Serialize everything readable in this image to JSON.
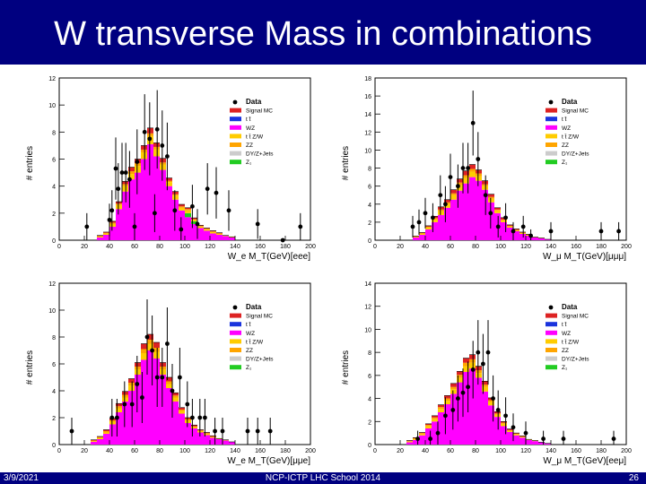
{
  "slide": {
    "title": "W transverse Mass in combinations",
    "date": "3/9/2021",
    "footer": "NCP-ICTP LHC School 2014",
    "page": "26"
  },
  "legend_colors": {
    "Data": "#000000",
    "Signal MC": "#dd2222",
    "tt": "#1a33dd",
    "WZ": "#ff00ff",
    "ttZ/W": "#ffcc00",
    "ZZ": "#ffa500",
    "DY/Z+Jets": "#cccccc",
    "Z1": "#22cc22"
  },
  "chart_data": [
    {
      "type": "bar",
      "stacked": true,
      "panel": "top-left",
      "xlabel": "W_e M_T(GeV)[eee]",
      "ylabel": "# entries",
      "xlim": [
        0,
        200
      ],
      "ylim": [
        0,
        12
      ],
      "xticks": [
        0,
        20,
        40,
        60,
        80,
        100,
        120,
        140,
        160,
        180,
        200
      ],
      "yticks": [
        0,
        2,
        4,
        6,
        8,
        10,
        12
      ],
      "legend": {
        "position": "top-right",
        "entries": [
          "Data",
          "Signal MC",
          "tt",
          "WZ",
          "ttZ/W",
          "ZZ",
          "DY/Z+Jets",
          "Z1"
        ]
      },
      "legend_labels": [
        "Data",
        "Signal MC",
        "t t̄",
        "WZ",
        "t t̄ Z/W",
        "ZZ",
        "DY/Z+Jets",
        "Z₁"
      ],
      "bin_edges": [
        30,
        35,
        40,
        45,
        50,
        55,
        60,
        65,
        70,
        75,
        80,
        85,
        90,
        95,
        100,
        105,
        110,
        115,
        120,
        125,
        130,
        135,
        140
      ],
      "series": [
        {
          "name": "WZ",
          "values": [
            0.2,
            0.4,
            1.0,
            2.3,
            3.6,
            4.5,
            5.0,
            6.0,
            7.1,
            6.2,
            5.2,
            4.0,
            3.0,
            2.2,
            1.7,
            1.2,
            0.9,
            0.7,
            0.5,
            0.4,
            0.3,
            0.2
          ]
        },
        {
          "name": "Z1",
          "values": [
            0,
            0,
            0,
            0,
            0,
            0,
            0,
            0,
            0,
            0,
            0,
            0,
            0,
            0,
            0.3,
            0.2,
            0,
            0,
            0,
            0,
            0,
            0
          ]
        },
        {
          "name": "ttZ/W",
          "values": [
            0.05,
            0.1,
            0.2,
            0.3,
            0.4,
            0.4,
            0.5,
            0.5,
            0.6,
            0.5,
            0.4,
            0.3,
            0.3,
            0.2,
            0.2,
            0.1,
            0.1,
            0.1,
            0.1,
            0.1,
            0.05,
            0.05
          ]
        },
        {
          "name": "ZZ",
          "values": [
            0.05,
            0.05,
            0.1,
            0.1,
            0.15,
            0.2,
            0.2,
            0.2,
            0.2,
            0.2,
            0.15,
            0.1,
            0.1,
            0.1,
            0.1,
            0.05,
            0.05,
            0.05,
            0.05,
            0,
            0,
            0
          ]
        },
        {
          "name": "Signal MC",
          "values": [
            0.05,
            0.05,
            0.1,
            0.15,
            0.2,
            0.3,
            0.3,
            0.3,
            0.4,
            0.3,
            0.3,
            0.2,
            0.2,
            0.15,
            0.1,
            0.1,
            0.05,
            0.05,
            0.05,
            0.05,
            0,
            0
          ]
        }
      ],
      "data_points": {
        "x": [
          22,
          40,
          42,
          45,
          47,
          50,
          53,
          56,
          60,
          62,
          68,
          72,
          76,
          78,
          82,
          86,
          92,
          97,
          106,
          110,
          118,
          125,
          135,
          158,
          178,
          192
        ],
        "y": [
          1.0,
          1.5,
          2.2,
          5.3,
          3.8,
          5.0,
          5.0,
          4.5,
          1.0,
          5.8,
          8.0,
          7.5,
          2.0,
          8.2,
          7.0,
          6.2,
          2.2,
          0.8,
          2.5,
          1.2,
          3.8,
          3.5,
          2.2,
          1.2,
          0.0,
          1.0
        ],
        "err": [
          1.0,
          1.2,
          1.5,
          2.3,
          1.9,
          2.2,
          2.2,
          2.1,
          1.0,
          2.4,
          2.8,
          2.7,
          1.4,
          2.9,
          2.6,
          2.5,
          1.5,
          0.9,
          1.6,
          1.1,
          1.9,
          1.9,
          1.5,
          1.1,
          0.0,
          1.0
        ]
      }
    },
    {
      "type": "bar",
      "stacked": true,
      "panel": "top-right",
      "xlabel": "W_μ M_T(GeV)[μμμ]",
      "ylabel": "# entries",
      "xlim": [
        0,
        200
      ],
      "ylim": [
        0,
        18
      ],
      "xticks": [
        0,
        20,
        40,
        60,
        80,
        100,
        120,
        140,
        160,
        180,
        200
      ],
      "yticks": [
        0,
        2,
        4,
        6,
        8,
        10,
        12,
        14,
        16,
        18
      ],
      "legend": {
        "position": "top-right",
        "entries": [
          "Data",
          "Signal MC",
          "tt",
          "WZ",
          "ttZ/W",
          "ZZ",
          "DY/Z+Jets",
          "Z1"
        ]
      },
      "legend_labels": [
        "Data",
        "Signal MC",
        "t t̄",
        "WZ",
        "t t̄ Z/W",
        "ZZ",
        "DY/Z+Jets",
        "Z₁"
      ],
      "bin_edges": [
        30,
        35,
        40,
        45,
        50,
        55,
        60,
        65,
        70,
        75,
        80,
        85,
        90,
        95,
        100,
        105,
        110,
        115,
        120,
        125,
        130,
        135,
        140
      ],
      "series": [
        {
          "name": "WZ",
          "values": [
            0.3,
            0.6,
            1.2,
            2.0,
            2.8,
            3.6,
            4.5,
            5.5,
            6.3,
            7.0,
            6.6,
            5.6,
            4.2,
            3.0,
            2.0,
            1.4,
            1.0,
            0.7,
            0.5,
            0.3,
            0.2,
            0.1
          ]
        },
        {
          "name": "Z1",
          "values": [
            0,
            0,
            0,
            0,
            0,
            0,
            0,
            0,
            0,
            0,
            0,
            0,
            0,
            0,
            0,
            0,
            0,
            0,
            0,
            0,
            0,
            0
          ]
        },
        {
          "name": "ttZ/W",
          "values": [
            0.05,
            0.1,
            0.2,
            0.3,
            0.4,
            0.4,
            0.5,
            0.6,
            0.6,
            0.6,
            0.5,
            0.4,
            0.4,
            0.3,
            0.2,
            0.1,
            0.1,
            0.1,
            0.05,
            0.05,
            0.05,
            0
          ]
        },
        {
          "name": "ZZ",
          "values": [
            0.05,
            0.1,
            0.1,
            0.15,
            0.2,
            0.2,
            0.2,
            0.3,
            0.3,
            0.3,
            0.3,
            0.2,
            0.2,
            0.1,
            0.1,
            0.1,
            0.05,
            0.05,
            0.05,
            0,
            0,
            0
          ]
        },
        {
          "name": "Signal MC",
          "values": [
            0.05,
            0.05,
            0.1,
            0.2,
            0.3,
            0.3,
            0.4,
            0.4,
            0.5,
            0.5,
            0.4,
            0.4,
            0.3,
            0.2,
            0.2,
            0.1,
            0.1,
            0.05,
            0.05,
            0,
            0,
            0
          ]
        }
      ],
      "data_points": {
        "x": [
          30,
          35,
          40,
          46,
          52,
          56,
          60,
          66,
          70,
          74,
          78,
          82,
          88,
          92,
          98,
          104,
          110,
          118,
          124,
          140,
          180,
          194
        ],
        "y": [
          1.5,
          2.0,
          3.0,
          2.5,
          5.0,
          4.0,
          7.0,
          6.0,
          8.0,
          8.0,
          13.0,
          9.0,
          5.0,
          3.0,
          1.5,
          2.5,
          1.0,
          1.5,
          0.5,
          1.0,
          1.0,
          1.0
        ],
        "err": [
          1.2,
          1.4,
          1.7,
          1.6,
          2.2,
          2.0,
          2.6,
          2.4,
          2.8,
          2.8,
          3.6,
          3.0,
          2.2,
          1.7,
          1.2,
          1.6,
          1.0,
          1.2,
          0.7,
          1.0,
          1.0,
          1.0
        ]
      }
    },
    {
      "type": "bar",
      "stacked": true,
      "panel": "bottom-left",
      "xlabel": "W_e M_T(GeV)[μμe]",
      "ylabel": "# entries",
      "xlim": [
        0,
        200
      ],
      "ylim": [
        0,
        12
      ],
      "xticks": [
        0,
        20,
        40,
        60,
        80,
        100,
        120,
        140,
        160,
        180,
        200
      ],
      "yticks": [
        0,
        2,
        4,
        6,
        8,
        10,
        12
      ],
      "legend": {
        "position": "top-right",
        "entries": [
          "Data",
          "Signal MC",
          "tt",
          "WZ",
          "ttZ/W",
          "ZZ",
          "DY/Z+Jets",
          "Z1"
        ]
      },
      "legend_labels": [
        "Data",
        "Signal MC",
        "t t̄",
        "WZ",
        "t t̄ Z/W",
        "ZZ",
        "DY/Z+Jets",
        "Z₁"
      ],
      "bin_edges": [
        25,
        30,
        35,
        40,
        45,
        50,
        55,
        60,
        65,
        70,
        75,
        80,
        85,
        90,
        95,
        100,
        105,
        110,
        115,
        120,
        125,
        130,
        135,
        140
      ],
      "series": [
        {
          "name": "WZ",
          "values": [
            0.2,
            0.4,
            0.8,
            1.5,
            2.4,
            3.2,
            4.0,
            5.2,
            6.3,
            7.0,
            6.4,
            5.2,
            4.2,
            3.2,
            2.3,
            1.6,
            1.2,
            0.9,
            0.7,
            0.5,
            0.4,
            0.3,
            0.2
          ]
        },
        {
          "name": "Z1",
          "values": [
            0,
            0,
            0,
            0,
            0,
            0,
            0,
            0,
            0,
            0,
            0,
            0,
            0,
            0,
            0,
            0,
            0,
            0,
            0,
            0,
            0,
            0,
            0
          ]
        },
        {
          "name": "ttZ/W",
          "values": [
            0.05,
            0.1,
            0.1,
            0.2,
            0.3,
            0.3,
            0.4,
            0.4,
            0.5,
            0.5,
            0.5,
            0.4,
            0.3,
            0.3,
            0.2,
            0.2,
            0.1,
            0.1,
            0.1,
            0.05,
            0.05,
            0.05,
            0
          ]
        },
        {
          "name": "ZZ",
          "values": [
            0.05,
            0.05,
            0.1,
            0.1,
            0.15,
            0.2,
            0.2,
            0.2,
            0.3,
            0.3,
            0.3,
            0.2,
            0.2,
            0.15,
            0.1,
            0.1,
            0.05,
            0.05,
            0.05,
            0.05,
            0,
            0,
            0
          ]
        },
        {
          "name": "Signal MC",
          "values": [
            0.05,
            0.05,
            0.1,
            0.15,
            0.2,
            0.25,
            0.3,
            0.3,
            0.4,
            0.4,
            0.4,
            0.3,
            0.3,
            0.2,
            0.15,
            0.1,
            0.1,
            0.05,
            0.05,
            0.05,
            0,
            0,
            0
          ]
        }
      ],
      "data_points": {
        "x": [
          10,
          42,
          46,
          52,
          58,
          62,
          66,
          70,
          74,
          78,
          82,
          86,
          90,
          96,
          102,
          106,
          112,
          116,
          124,
          130,
          150,
          158,
          168
        ],
        "y": [
          1.0,
          2.0,
          2.0,
          3.0,
          3.0,
          4.5,
          3.5,
          8.0,
          7.0,
          5.0,
          5.0,
          7.5,
          4.0,
          5.0,
          3.0,
          2.0,
          2.0,
          2.0,
          1.0,
          1.0,
          1.0,
          1.0,
          1.0
        ],
        "err": [
          1.0,
          1.4,
          1.4,
          1.7,
          1.7,
          2.1,
          1.9,
          2.8,
          2.6,
          2.2,
          2.2,
          2.7,
          2.0,
          2.2,
          1.7,
          1.4,
          1.4,
          1.4,
          1.0,
          1.0,
          1.0,
          1.0,
          1.0
        ]
      }
    },
    {
      "type": "bar",
      "stacked": true,
      "panel": "bottom-right",
      "xlabel": "W_μ M_T(GeV)[eeμ]",
      "ylabel": "# entries",
      "xlim": [
        0,
        200
      ],
      "ylim": [
        0,
        14
      ],
      "xticks": [
        0,
        20,
        40,
        60,
        80,
        100,
        120,
        140,
        160,
        180,
        200
      ],
      "yticks": [
        0,
        2,
        4,
        6,
        8,
        10,
        12,
        14
      ],
      "legend": {
        "position": "top-right",
        "entries": [
          "Data",
          "Signal MC",
          "tt",
          "WZ",
          "ttZ/W",
          "ZZ",
          "DY/Z+Jets",
          "Z1"
        ]
      },
      "legend_labels": [
        "Data",
        "Signal MC",
        "t t̄",
        "WZ",
        "t t̄ Z/W",
        "ZZ",
        "DY/Z+Jets",
        "Z₁"
      ],
      "bin_edges": [
        25,
        30,
        35,
        40,
        45,
        50,
        55,
        60,
        65,
        70,
        75,
        80,
        85,
        90,
        95,
        100,
        105,
        110,
        115,
        120,
        125,
        130,
        135,
        140
      ],
      "series": [
        {
          "name": "WZ",
          "values": [
            0.2,
            0.4,
            0.8,
            1.4,
            2.0,
            2.8,
            3.5,
            4.4,
            5.4,
            6.3,
            6.6,
            5.8,
            4.6,
            3.4,
            2.4,
            1.6,
            1.1,
            0.8,
            0.6,
            0.4,
            0.3,
            0.2,
            0.1
          ]
        },
        {
          "name": "Z1",
          "values": [
            0,
            0,
            0,
            0,
            0,
            0,
            0,
            0,
            0,
            0,
            0,
            0,
            0,
            0,
            0,
            0,
            0,
            0,
            0,
            0,
            0,
            0,
            0
          ]
        },
        {
          "name": "ttZ/W",
          "values": [
            0.05,
            0.1,
            0.1,
            0.2,
            0.2,
            0.3,
            0.3,
            0.4,
            0.4,
            0.5,
            0.5,
            0.4,
            0.4,
            0.3,
            0.2,
            0.2,
            0.1,
            0.1,
            0.05,
            0.05,
            0.05,
            0,
            0
          ]
        },
        {
          "name": "ZZ",
          "values": [
            0.05,
            0.05,
            0.1,
            0.1,
            0.15,
            0.15,
            0.2,
            0.2,
            0.25,
            0.3,
            0.3,
            0.25,
            0.2,
            0.15,
            0.1,
            0.1,
            0.05,
            0.05,
            0.05,
            0,
            0,
            0,
            0
          ]
        },
        {
          "name": "Signal MC",
          "values": [
            0.05,
            0.05,
            0.05,
            0.1,
            0.15,
            0.2,
            0.25,
            0.3,
            0.3,
            0.4,
            0.4,
            0.35,
            0.3,
            0.2,
            0.15,
            0.1,
            0.1,
            0.05,
            0.05,
            0,
            0,
            0,
            0
          ]
        }
      ],
      "data_points": {
        "x": [
          34,
          44,
          50,
          56,
          62,
          66,
          70,
          74,
          78,
          82,
          86,
          90,
          94,
          98,
          104,
          110,
          120,
          134,
          150,
          190
        ],
        "y": [
          0.5,
          0.5,
          1.0,
          2.5,
          3.0,
          4.0,
          4.5,
          5.0,
          6.5,
          8.0,
          7.0,
          8.0,
          4.0,
          3.0,
          2.5,
          1.5,
          1.0,
          0.5,
          0.5,
          0.5
        ],
        "err": [
          0.7,
          0.7,
          1.0,
          1.6,
          1.7,
          2.0,
          2.1,
          2.2,
          2.5,
          2.8,
          2.6,
          2.8,
          2.0,
          1.7,
          1.6,
          1.2,
          1.0,
          0.7,
          0.7,
          0.7
        ]
      }
    }
  ]
}
